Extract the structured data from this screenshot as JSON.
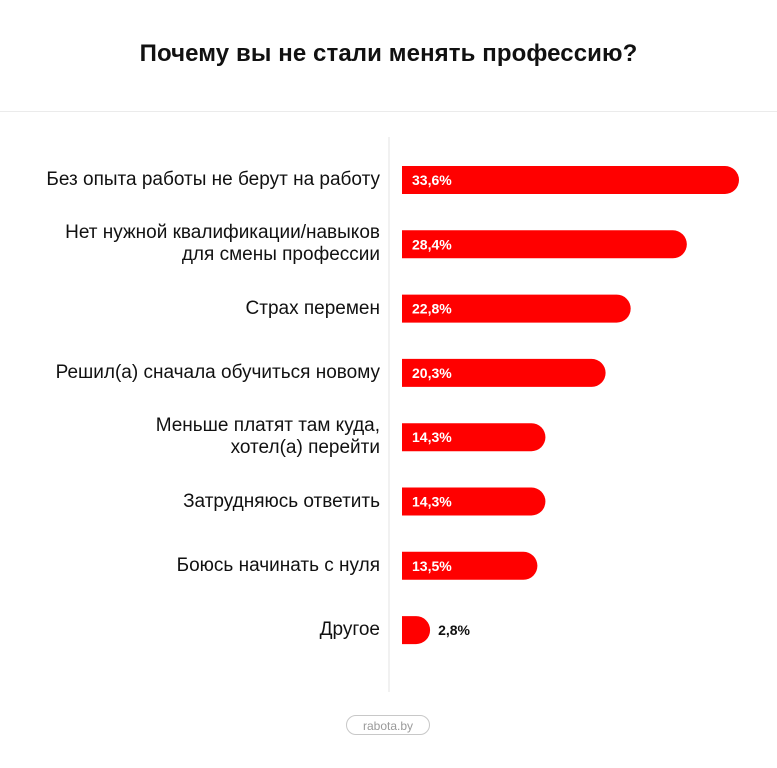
{
  "chart_data": {
    "type": "bar",
    "orientation": "horizontal",
    "title": "Почему вы не стали менять профессию?",
    "categories": [
      "Без опыта работы не берут на работу",
      "Нет нужной квалификации/навыков\nдля смены профессии",
      "Страх перемен",
      "Решил(а) сначала обучиться новому",
      "Меньше платят там куда,\nхотел(а) перейти",
      "Затрудняюсь ответить",
      "Боюсь начинать с нуля",
      "Другое"
    ],
    "values": [
      33.6,
      28.4,
      22.8,
      20.3,
      14.3,
      14.3,
      13.5,
      2.8
    ],
    "value_labels": [
      "33,6%",
      "28,4%",
      "22,8%",
      "20,3%",
      "14,3%",
      "14,3%",
      "13,5%",
      "2,8%"
    ],
    "unit": "%",
    "bar_color": "#ff0000",
    "label_color_inside": "#ffffff",
    "label_color_outside": "#111111",
    "grid": false
  },
  "watermark": "rabota.by"
}
